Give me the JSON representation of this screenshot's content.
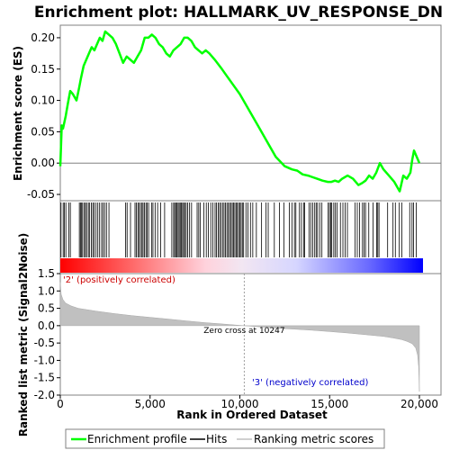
{
  "chart_data": [
    {
      "type": "line",
      "title": "Enrichment plot: HALLMARK_UV_RESPONSE_DN",
      "ylabel": "Enrichment score (ES)",
      "ylim": [
        -0.06,
        0.22
      ],
      "yticks": [
        "0.20",
        "0.15",
        "0.10",
        "0.05",
        "0.00",
        "-0.05"
      ],
      "yticks_values": [
        0.2,
        0.15,
        0.1,
        0.05,
        0.0,
        -0.05
      ],
      "xlim": [
        0,
        20200
      ],
      "grid": false,
      "series": [
        {
          "name": "Enrichment profile",
          "color": "#00ff00",
          "x": [
            0,
            80,
            150,
            300,
            420,
            550,
            700,
            900,
            1050,
            1150,
            1300,
            1450,
            1600,
            1750,
            1900,
            2050,
            2200,
            2350,
            2500,
            2700,
            2900,
            3100,
            3300,
            3500,
            3700,
            3900,
            4100,
            4300,
            4500,
            4700,
            4900,
            5100,
            5300,
            5500,
            5700,
            5900,
            6100,
            6300,
            6500,
            6700,
            6900,
            7100,
            7300,
            7500,
            7700,
            7900,
            8100,
            8300,
            8600,
            9000,
            9500,
            10000,
            10500,
            11000,
            11500,
            12000,
            12500,
            12900,
            13200,
            13500,
            13800,
            14000,
            14300,
            14600,
            14900,
            15100,
            15300,
            15500,
            15700,
            16000,
            16300,
            16600,
            16800,
            17000,
            17200,
            17400,
            17600,
            17800,
            18000,
            18300,
            18600,
            18900,
            19100,
            19300,
            19500,
            19600,
            19700,
            20000
          ],
          "y": [
            -0.005,
            0.06,
            0.055,
            0.075,
            0.095,
            0.115,
            0.11,
            0.1,
            0.12,
            0.135,
            0.155,
            0.165,
            0.175,
            0.185,
            0.18,
            0.19,
            0.2,
            0.195,
            0.21,
            0.205,
            0.2,
            0.19,
            0.175,
            0.16,
            0.17,
            0.165,
            0.16,
            0.17,
            0.18,
            0.2,
            0.2,
            0.205,
            0.2,
            0.19,
            0.185,
            0.175,
            0.17,
            0.18,
            0.185,
            0.19,
            0.2,
            0.2,
            0.195,
            0.185,
            0.18,
            0.175,
            0.18,
            0.175,
            0.165,
            0.15,
            0.13,
            0.11,
            0.085,
            0.06,
            0.035,
            0.01,
            -0.005,
            -0.01,
            -0.012,
            -0.018,
            -0.02,
            -0.022,
            -0.025,
            -0.028,
            -0.03,
            -0.03,
            -0.028,
            -0.03,
            -0.025,
            -0.02,
            -0.025,
            -0.035,
            -0.032,
            -0.028,
            -0.02,
            -0.025,
            -0.015,
            0.0,
            -0.01,
            -0.02,
            -0.03,
            -0.045,
            -0.02,
            -0.025,
            -0.015,
            0.005,
            0.02,
            0.0
          ]
        }
      ]
    },
    {
      "type": "hits",
      "legend_label": "Hits",
      "xlim": [
        0,
        20200
      ],
      "hit_color": "#000000",
      "hits": [
        40,
        160,
        230,
        310,
        480,
        560,
        1060,
        1120,
        1170,
        1240,
        1320,
        1400,
        1460,
        1560,
        1620,
        1730,
        1810,
        1880,
        1990,
        2090,
        2190,
        2300,
        2380,
        2470,
        2570,
        2710,
        3640,
        3720,
        3910,
        4160,
        4240,
        4320,
        4390,
        4470,
        4550,
        4610,
        4690,
        4770,
        4840,
        4920,
        5080,
        5160,
        5280,
        5420,
        5590,
        5810,
        6210,
        6310,
        6370,
        6430,
        6490,
        6560,
        6620,
        6680,
        6740,
        6810,
        6870,
        6930,
        7010,
        7090,
        7200,
        7310,
        7620,
        7710,
        7800,
        8000,
        8130,
        8250,
        8380,
        8500,
        8620,
        8700,
        8790,
        8870,
        8950,
        9040,
        9120,
        9200,
        9280,
        9360,
        9430,
        9510,
        9580,
        9650,
        9720,
        9790,
        9860,
        9930,
        10000,
        10070,
        10140,
        10210,
        10340,
        10450,
        10590,
        10720,
        10920,
        11210,
        11460,
        11580,
        11920,
        12210,
        12450,
        12760,
        12900,
        13040,
        13120,
        13320,
        13430,
        13550,
        13610,
        13850,
        13950,
        14060,
        14170,
        14250,
        14330,
        14450,
        14570,
        14920,
        14990,
        15060,
        15120,
        15230,
        15320,
        15410,
        15600,
        15740,
        15860,
        15990,
        16410,
        16540,
        16660,
        16830,
        16920,
        17000,
        17180,
        17420,
        17620,
        17680,
        17750,
        18230,
        18530,
        18660,
        18880,
        19020,
        19460,
        19590,
        19670,
        19820
      ]
    },
    {
      "type": "area",
      "ylabel": "Ranked list metric (Signal2Noise)",
      "xlabel": "Rank in Ordered Dataset",
      "ylim": [
        -2.0,
        1.5
      ],
      "yticks": [
        "1.5",
        "1.0",
        "0.5",
        "0.0",
        "-0.5",
        "-1.0",
        "-1.5",
        "-2.0"
      ],
      "yticks_values": [
        1.5,
        1.0,
        0.5,
        0.0,
        -0.5,
        -1.0,
        -1.5,
        -2.0
      ],
      "xlim": [
        0,
        20200
      ],
      "xticks": [
        "0",
        "5,000",
        "10,000",
        "15,000",
        "20,000"
      ],
      "xticks_values": [
        0,
        5000,
        10000,
        15000,
        20000
      ],
      "zero_cross": 10247,
      "zero_cross_label": "Zero cross at 10247",
      "positive_label": "'2' (positively correlated)",
      "negative_label": "'3' (negatively correlated)",
      "series": [
        {
          "name": "Ranking metric scores",
          "color": "#c0c0c0",
          "x": [
            0,
            50,
            150,
            300,
            600,
            1000,
            2000,
            3000,
            4000,
            5000,
            6000,
            7000,
            8000,
            9000,
            10000,
            10247,
            11000,
            12000,
            13000,
            14000,
            15000,
            16000,
            17000,
            18000,
            18500,
            19000,
            19300,
            19600,
            19800,
            19900,
            19960,
            20000
          ],
          "y": [
            1.25,
            0.9,
            0.75,
            0.65,
            0.57,
            0.5,
            0.42,
            0.35,
            0.29,
            0.24,
            0.19,
            0.14,
            0.09,
            0.05,
            0.01,
            0.0,
            -0.03,
            -0.07,
            -0.1,
            -0.13,
            -0.17,
            -0.21,
            -0.26,
            -0.31,
            -0.35,
            -0.4,
            -0.45,
            -0.52,
            -0.65,
            -0.85,
            -1.2,
            -1.9
          ]
        }
      ]
    }
  ],
  "legend": [
    {
      "label": "Enrichment profile",
      "color": "#00ff00"
    },
    {
      "label": "Hits",
      "color": "#000000"
    },
    {
      "label": "Ranking metric scores",
      "color": "#c0c0c0"
    }
  ]
}
